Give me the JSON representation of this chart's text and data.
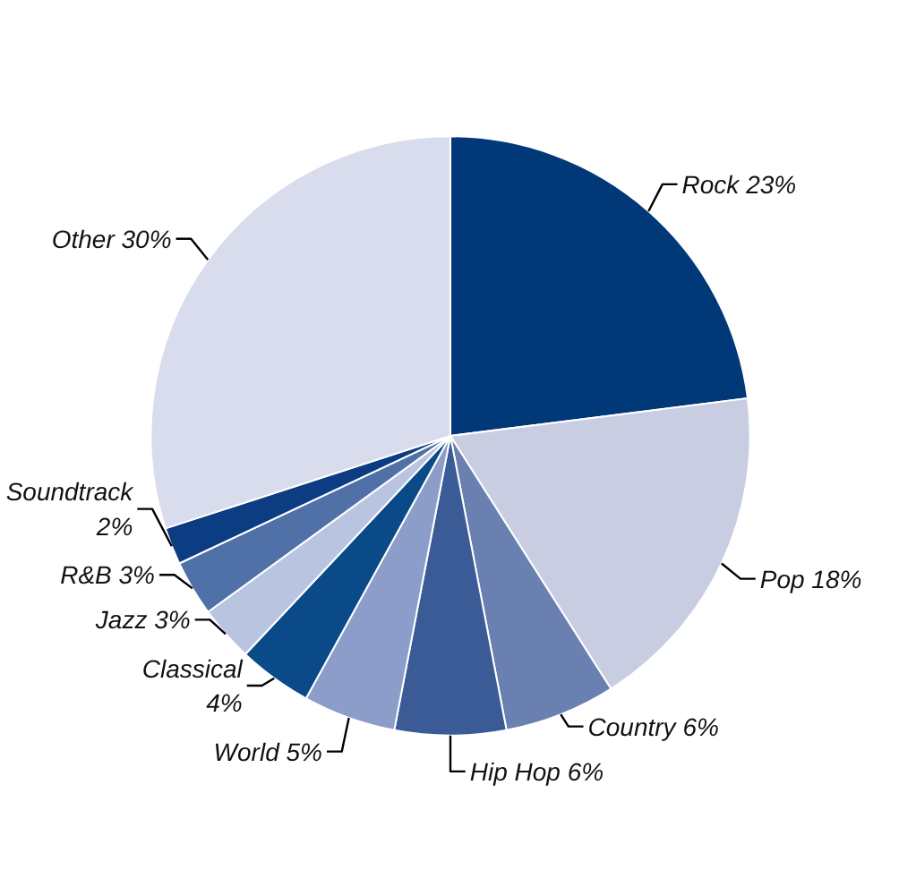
{
  "chart_data": {
    "type": "pie",
    "categories": [
      "Rock",
      "Pop",
      "Country",
      "Hip Hop",
      "World",
      "Classical",
      "Jazz",
      "R&B",
      "Soundtrack",
      "Other"
    ],
    "values": [
      23,
      18,
      6,
      6,
      5,
      4,
      3,
      3,
      2,
      30
    ],
    "value_labels": [
      "23%",
      "18%",
      "6%",
      "6%",
      "5%",
      "4%",
      "3%",
      "3%",
      "2%",
      "30%"
    ],
    "colors": [
      "#003878",
      "#c8cde2",
      "#6a80b0",
      "#3a5b96",
      "#8b9dc8",
      "#0a4a88",
      "#b9c5e0",
      "#5070a8",
      "#0c3c82",
      "#d8dcec"
    ]
  }
}
